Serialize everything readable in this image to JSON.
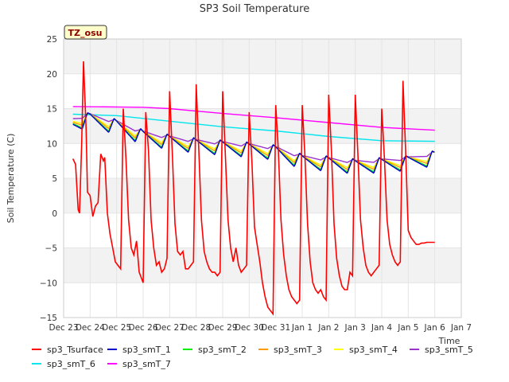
{
  "chart_data": {
    "type": "line",
    "title": "SP3 Soil Temperature",
    "xlabel": "Time",
    "ylabel": "Soil Temperature (C)",
    "badge": "TZ_osu",
    "ylim": [
      -15,
      25
    ],
    "xlim": [
      0,
      15
    ],
    "yticks": [
      -15,
      -10,
      -5,
      0,
      5,
      10,
      15,
      20,
      25
    ],
    "yticklabels": [
      "−15",
      "−10",
      "−5",
      "0",
      "5",
      "10",
      "15",
      "20",
      "25"
    ],
    "xticks": [
      0,
      1,
      2,
      3,
      4,
      5,
      6,
      7,
      8,
      9,
      10,
      11,
      12,
      13,
      14,
      15
    ],
    "xticklabels": [
      "Dec 23",
      "Dec 24",
      "Dec 25",
      "Dec 26",
      "Dec 27",
      "Dec 28",
      "Dec 29",
      "Dec 30",
      "Dec 31",
      "Jan 1",
      "Jan 2",
      "Jan 3",
      "Jan 4",
      "Jan 5",
      "Jan 6",
      "Jan 7"
    ],
    "x_unit": "days since Dec 23",
    "grid": true,
    "legend": "bottom",
    "series": [
      {
        "name": "sp3_Tsurface",
        "color": "#ff0000",
        "x": [
          0.35,
          0.45,
          0.55,
          0.6,
          0.68,
          0.75,
          0.85,
          0.9,
          1.0,
          1.1,
          1.2,
          1.3,
          1.4,
          1.5,
          1.55,
          1.65,
          1.75,
          1.85,
          1.95,
          2.05,
          2.15,
          2.25,
          2.35,
          2.45,
          2.55,
          2.65,
          2.75,
          2.85,
          2.9,
          3.0,
          3.1,
          3.2,
          3.3,
          3.4,
          3.5,
          3.6,
          3.7,
          3.8,
          3.9,
          4.0,
          4.1,
          4.2,
          4.3,
          4.4,
          4.5,
          4.6,
          4.7,
          4.8,
          4.9,
          5.0,
          5.1,
          5.2,
          5.3,
          5.4,
          5.5,
          5.6,
          5.7,
          5.8,
          5.9,
          6.0,
          6.1,
          6.2,
          6.3,
          6.4,
          6.5,
          6.6,
          6.7,
          6.8,
          6.9,
          7.0,
          7.1,
          7.2,
          7.3,
          7.4,
          7.5,
          7.6,
          7.7,
          7.8,
          7.9,
          8.0,
          8.1,
          8.2,
          8.3,
          8.4,
          8.5,
          8.6,
          8.7,
          8.8,
          8.9,
          9.0,
          9.1,
          9.2,
          9.3,
          9.4,
          9.5,
          9.6,
          9.7,
          9.8,
          9.9,
          10.0,
          10.1,
          10.2,
          10.3,
          10.4,
          10.5,
          10.6,
          10.7,
          10.8,
          10.9,
          11.0,
          11.1,
          11.2,
          11.3,
          11.4,
          11.5,
          11.6,
          11.7,
          11.8,
          11.9,
          12.0,
          12.1,
          12.2,
          12.3,
          12.4,
          12.5,
          12.6,
          12.7,
          12.8,
          12.9,
          13.0,
          13.1,
          13.2,
          13.3,
          13.4,
          13.5,
          13.6,
          13.7,
          13.8,
          13.9,
          14.0
        ],
        "values": [
          7.8,
          7.0,
          0.5,
          0.0,
          10.0,
          21.8,
          12.0,
          3.0,
          2.5,
          -0.5,
          1.0,
          1.5,
          8.5,
          7.5,
          8.0,
          0.0,
          -3.0,
          -5.0,
          -7.0,
          -7.5,
          -8.0,
          15.0,
          8.0,
          -1.0,
          -5.0,
          -6.0,
          -4.0,
          -8.5,
          -9.0,
          -10.0,
          14.5,
          9.0,
          -1.0,
          -5.0,
          -7.5,
          -7.0,
          -8.5,
          -8.0,
          -6.5,
          17.5,
          8.5,
          -1.5,
          -5.5,
          -6.0,
          -5.5,
          -8.0,
          -8.0,
          -7.5,
          -7.0,
          18.5,
          9.0,
          -1.0,
          -5.5,
          -7.0,
          -8.0,
          -8.5,
          -8.5,
          -9.0,
          -8.5,
          17.5,
          8.5,
          -1.0,
          -5.0,
          -7.0,
          -5.0,
          -7.5,
          -8.5,
          -8.0,
          -7.5,
          14.5,
          7.5,
          -2.0,
          -4.5,
          -7.0,
          -10.0,
          -12.0,
          -13.5,
          -14.0,
          -14.5,
          15.5,
          9.0,
          -1.0,
          -6.0,
          -9.0,
          -11.0,
          -12.0,
          -12.5,
          -13.0,
          -12.5,
          15.5,
          8.5,
          -1.5,
          -7.0,
          -10.0,
          -11.0,
          -11.5,
          -11.0,
          -12.0,
          -12.5,
          17.0,
          9.0,
          -1.5,
          -6.5,
          -9.0,
          -10.5,
          -11.0,
          -11.0,
          -8.5,
          -9.0,
          17.0,
          8.5,
          -1.0,
          -5.0,
          -7.5,
          -8.5,
          -9.0,
          -8.5,
          -8.0,
          -7.5,
          15.0,
          8.0,
          -1.0,
          -4.5,
          -6.0,
          -7.0,
          -7.5,
          -7.0,
          19.0,
          9.0,
          -2.5,
          -3.5,
          -4.0,
          -4.5,
          -4.5,
          -4.3,
          -4.3,
          -4.2,
          -4.2,
          -4.2,
          -4.2
        ]
      },
      {
        "name": "sp3_smT_1",
        "color": "#0000cc",
        "amp": 2.2
      },
      {
        "name": "sp3_smT_2",
        "color": "#00ee00",
        "amp": 2.0
      },
      {
        "name": "sp3_smT_3",
        "color": "#ff9900",
        "amp": 1.6
      },
      {
        "name": "sp3_smT_4",
        "color": "#ffff00",
        "amp": 1.3
      },
      {
        "name": "sp3_smT_5",
        "color": "#9933cc",
        "amp": 0.5
      },
      {
        "name": "sp3_smT_6",
        "color": "#00e5ee",
        "x": [
          0.35,
          2,
          4,
          6,
          8,
          10,
          12,
          14.0
        ],
        "values": [
          14.2,
          14.0,
          13.2,
          12.4,
          11.8,
          11.0,
          10.4,
          10.3
        ]
      },
      {
        "name": "sp3_smT_7",
        "color": "#ff00ff",
        "x": [
          0.35,
          3,
          4,
          6,
          8,
          10,
          12,
          14.0
        ],
        "values": [
          15.3,
          15.2,
          15.0,
          14.3,
          13.7,
          13.0,
          12.3,
          11.9
        ]
      }
    ],
    "smT_base": {
      "x": [
        0.35,
        1,
        2,
        3,
        4,
        5,
        6,
        7,
        8,
        9,
        10,
        11,
        12,
        13,
        14.0
      ],
      "values": [
        13.0,
        13.5,
        12.5,
        11.0,
        10.3,
        9.8,
        9.5,
        9.2,
        8.8,
        7.5,
        7.2,
        6.8,
        7.0,
        7.3,
        8.0
      ]
    }
  }
}
